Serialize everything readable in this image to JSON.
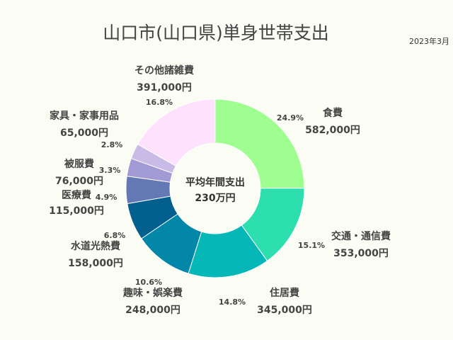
{
  "title": "山口市(山口県)単身世帯支出",
  "date": "2023年3月",
  "center": {
    "line1": "平均年間支出",
    "line2": "230万円"
  },
  "chart_data": {
    "type": "pie",
    "title": "山口市(山口県)単身世帯支出",
    "unit": "円",
    "slices": [
      {
        "name": "食費",
        "value": 582000,
        "value_label": "582,000円",
        "percent": "24.9%",
        "color": "#9efe90"
      },
      {
        "name": "交通・通信費",
        "value": 353000,
        "value_label": "353,000円",
        "percent": "15.1%",
        "color": "#2ddfae"
      },
      {
        "name": "住居費",
        "value": 345000,
        "value_label": "345,000円",
        "percent": "14.8%",
        "color": "#05b7b7"
      },
      {
        "name": "趣味・娯楽費",
        "value": 248000,
        "value_label": "248,000円",
        "percent": "10.6%",
        "color": "#0387a8"
      },
      {
        "name": "水道光熱費",
        "value": 158000,
        "value_label": "158,000円",
        "percent": "6.8%",
        "color": "#035f8e"
      },
      {
        "name": "医療費",
        "value": 115000,
        "value_label": "115,000円",
        "percent": "4.9%",
        "color": "#6378b4"
      },
      {
        "name": "被服費",
        "value": 76000,
        "value_label": "76,000円",
        "percent": "3.3%",
        "color": "#a29ad4"
      },
      {
        "name": "家具・家事用品",
        "value": 65000,
        "value_label": "65,000円",
        "percent": "2.8%",
        "color": "#c8bbe8"
      },
      {
        "name": "その他諸雑費",
        "value": 391000,
        "value_label": "391,000円",
        "percent": "16.8%",
        "color": "#fde1fd"
      }
    ]
  }
}
